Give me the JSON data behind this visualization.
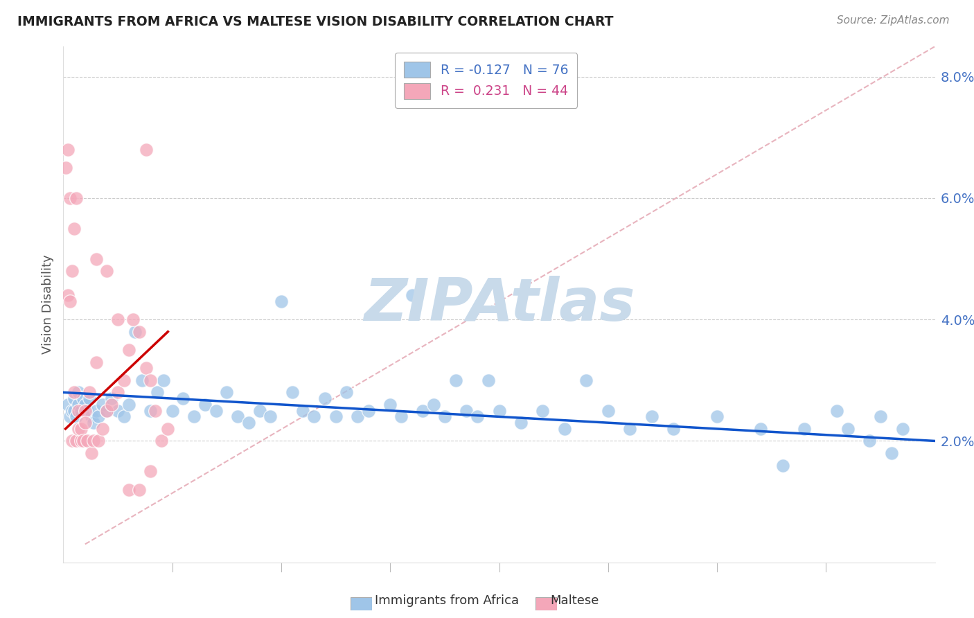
{
  "title": "IMMIGRANTS FROM AFRICA VS MALTESE VISION DISABILITY CORRELATION CHART",
  "source": "Source: ZipAtlas.com",
  "ylabel": "Vision Disability",
  "xlim": [
    0,
    0.4
  ],
  "ylim": [
    0,
    0.085
  ],
  "yticks": [
    0.02,
    0.04,
    0.06,
    0.08
  ],
  "ytick_labels": [
    "2.0%",
    "4.0%",
    "6.0%",
    "8.0%"
  ],
  "xticks": [
    0.0,
    0.05,
    0.1,
    0.15,
    0.2,
    0.25,
    0.3,
    0.35,
    0.4
  ],
  "blue_r": -0.127,
  "blue_n": 76,
  "pink_r": 0.231,
  "pink_n": 44,
  "blue_color": "#9fc5e8",
  "pink_color": "#f4a7b9",
  "blue_line_color": "#1155cc",
  "pink_line_color": "#cc0000",
  "diag_line_color": "#e8b4be",
  "watermark": "ZIPAtlas",
  "watermark_color": "#c8daea",
  "legend_label1": "Immigrants from Africa",
  "legend_label2": "Maltese",
  "blue_scatter_x": [
    0.002,
    0.003,
    0.004,
    0.005,
    0.005,
    0.006,
    0.007,
    0.007,
    0.008,
    0.009,
    0.01,
    0.011,
    0.012,
    0.013,
    0.014,
    0.015,
    0.016,
    0.018,
    0.02,
    0.022,
    0.025,
    0.028,
    0.03,
    0.033,
    0.036,
    0.04,
    0.043,
    0.046,
    0.05,
    0.055,
    0.06,
    0.065,
    0.07,
    0.075,
    0.08,
    0.085,
    0.09,
    0.095,
    0.1,
    0.105,
    0.11,
    0.115,
    0.12,
    0.125,
    0.13,
    0.135,
    0.14,
    0.15,
    0.155,
    0.16,
    0.165,
    0.17,
    0.175,
    0.18,
    0.185,
    0.19,
    0.195,
    0.2,
    0.21,
    0.22,
    0.23,
    0.24,
    0.25,
    0.26,
    0.27,
    0.28,
    0.3,
    0.32,
    0.33,
    0.34,
    0.355,
    0.36,
    0.37,
    0.375,
    0.38,
    0.385
  ],
  "blue_scatter_y": [
    0.026,
    0.024,
    0.025,
    0.025,
    0.027,
    0.024,
    0.026,
    0.028,
    0.025,
    0.027,
    0.026,
    0.025,
    0.027,
    0.024,
    0.023,
    0.025,
    0.024,
    0.026,
    0.025,
    0.027,
    0.025,
    0.024,
    0.026,
    0.038,
    0.03,
    0.025,
    0.028,
    0.03,
    0.025,
    0.027,
    0.024,
    0.026,
    0.025,
    0.028,
    0.024,
    0.023,
    0.025,
    0.024,
    0.043,
    0.028,
    0.025,
    0.024,
    0.027,
    0.024,
    0.028,
    0.024,
    0.025,
    0.026,
    0.024,
    0.044,
    0.025,
    0.026,
    0.024,
    0.03,
    0.025,
    0.024,
    0.03,
    0.025,
    0.023,
    0.025,
    0.022,
    0.03,
    0.025,
    0.022,
    0.024,
    0.022,
    0.024,
    0.022,
    0.016,
    0.022,
    0.025,
    0.022,
    0.02,
    0.024,
    0.018,
    0.022
  ],
  "pink_scatter_x": [
    0.001,
    0.002,
    0.002,
    0.003,
    0.003,
    0.004,
    0.004,
    0.005,
    0.005,
    0.006,
    0.006,
    0.007,
    0.007,
    0.008,
    0.008,
    0.009,
    0.01,
    0.01,
    0.011,
    0.012,
    0.013,
    0.014,
    0.015,
    0.016,
    0.018,
    0.02,
    0.022,
    0.025,
    0.028,
    0.03,
    0.032,
    0.035,
    0.038,
    0.04,
    0.042,
    0.045,
    0.048,
    0.015,
    0.02,
    0.025,
    0.03,
    0.035,
    0.038,
    0.04
  ],
  "pink_scatter_y": [
    0.065,
    0.044,
    0.068,
    0.043,
    0.06,
    0.02,
    0.048,
    0.028,
    0.055,
    0.02,
    0.06,
    0.025,
    0.022,
    0.02,
    0.022,
    0.02,
    0.025,
    0.023,
    0.02,
    0.028,
    0.018,
    0.02,
    0.033,
    0.02,
    0.022,
    0.025,
    0.026,
    0.028,
    0.03,
    0.035,
    0.04,
    0.038,
    0.032,
    0.03,
    0.025,
    0.02,
    0.022,
    0.05,
    0.048,
    0.04,
    0.012,
    0.012,
    0.068,
    0.015
  ]
}
